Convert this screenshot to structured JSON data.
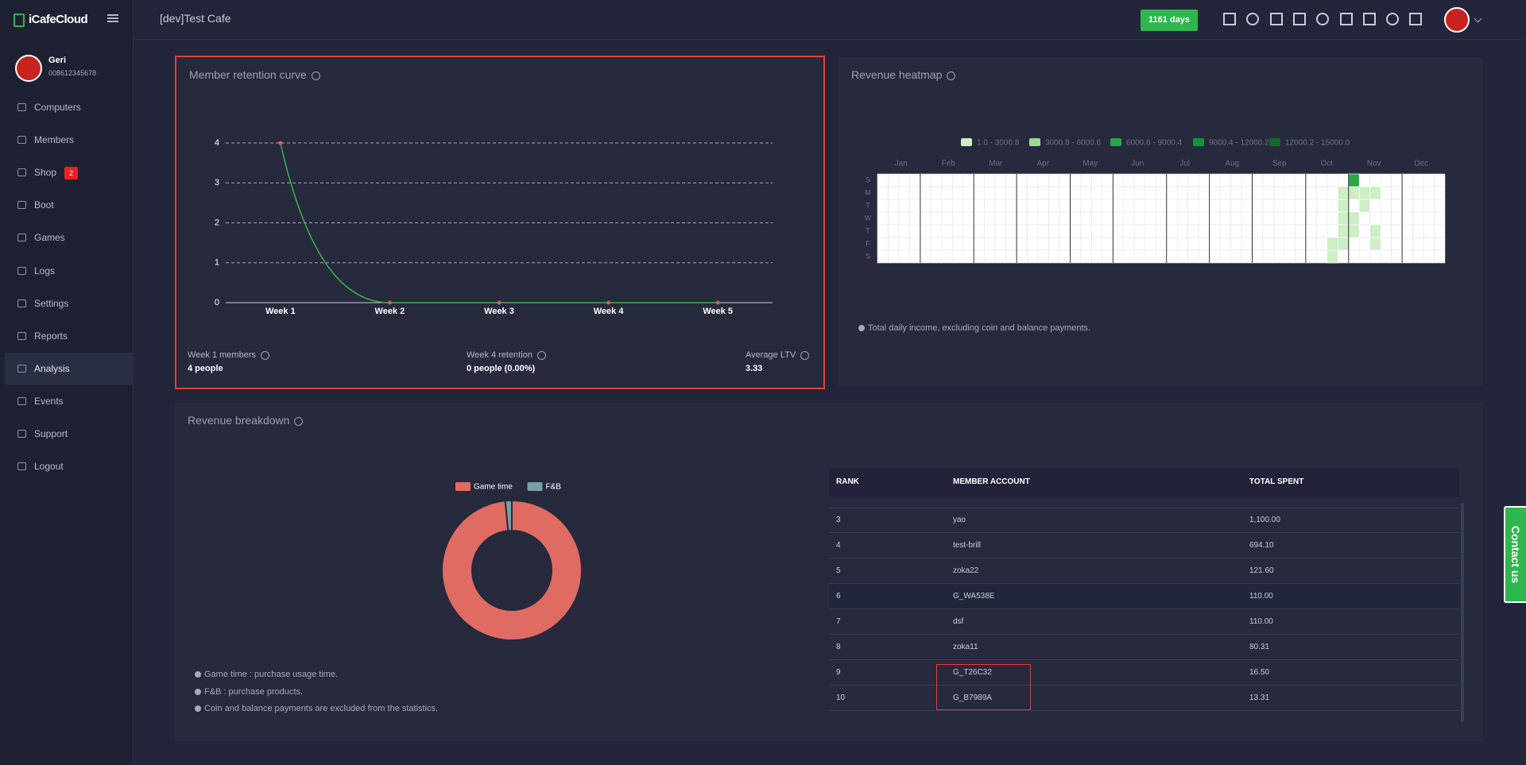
{
  "sidebar": {
    "brand": "iCafeCloud",
    "user": {
      "name": "Geri",
      "phone": "008612345678"
    },
    "menu": [
      {
        "label": "Computers"
      },
      {
        "label": "Members"
      },
      {
        "label": "Shop",
        "badge": "2"
      },
      {
        "label": "Boot"
      },
      {
        "label": "Games"
      },
      {
        "label": "Logs"
      },
      {
        "label": "Settings"
      },
      {
        "label": "Reports"
      },
      {
        "label": "Analysis",
        "active": true
      },
      {
        "label": "Events"
      },
      {
        "label": "Support"
      },
      {
        "label": "Logout"
      }
    ]
  },
  "header": {
    "cafe": "[dev]Test Cafe",
    "days": "1161 days"
  },
  "retention": {
    "title": "Member retention curve",
    "chart_data": {
      "type": "line",
      "categories": [
        "Week 1",
        "Week 2",
        "Week 3",
        "Week 4",
        "Week 5"
      ],
      "series": [
        {
          "color": "#3cb44b",
          "point_color": "#e05a55",
          "values": [
            4,
            0,
            0,
            0,
            0
          ]
        }
      ],
      "ylim": [
        0,
        4
      ],
      "yticks": [
        0,
        1,
        2,
        3,
        4
      ],
      "grid": true
    },
    "stats": [
      {
        "label": "Week 1 members",
        "value": "4 people"
      },
      {
        "label": "Week 4 retention",
        "value": "0 people (0.00%)"
      },
      {
        "label": "Average LTV",
        "value": "3.33"
      }
    ]
  },
  "heatmap": {
    "title": "Revenue heatmap",
    "chart_data": {
      "type": "heatmap",
      "legend": [
        {
          "label": "1.0 - 3000.8",
          "color": "#cdeec6",
          "min": 1.0,
          "max": 3000.8
        },
        {
          "label": "3000.8 - 6000.6",
          "color": "#9bdb92",
          "min": 3000.8,
          "max": 6000.6
        },
        {
          "label": "6000.6 - 9000.4",
          "color": "#25a845",
          "min": 6000.6,
          "max": 9000.4
        },
        {
          "label": "9000.4 - 12000.2",
          "color": "#13923a",
          "min": 9000.4,
          "max": 12000.2
        },
        {
          "label": "12000.2 - 15000.0",
          "color": "#0f6a2c",
          "min": 12000.2,
          "max": 15000.0
        }
      ],
      "months": [
        "Jan",
        "Feb",
        "Mar",
        "Apr",
        "May",
        "Jun",
        "Jul",
        "Aug",
        "Sep",
        "Oct",
        "Nov",
        "Dec"
      ],
      "days": [
        "S",
        "M",
        "T",
        "W",
        "T",
        "F",
        "S"
      ],
      "cells": [
        {
          "week": 44,
          "day": 0,
          "value": 7500
        },
        {
          "week": 43,
          "day": 1,
          "value": 1500
        },
        {
          "week": 44,
          "day": 1,
          "value": 1500
        },
        {
          "week": 45,
          "day": 1,
          "value": 1500
        },
        {
          "week": 46,
          "day": 1,
          "value": 1500
        },
        {
          "week": 43,
          "day": 2,
          "value": 1500
        },
        {
          "week": 45,
          "day": 2,
          "value": 1500
        },
        {
          "week": 43,
          "day": 3,
          "value": 1500
        },
        {
          "week": 44,
          "day": 3,
          "value": 1500
        },
        {
          "week": 43,
          "day": 4,
          "value": 1500
        },
        {
          "week": 44,
          "day": 4,
          "value": 1500
        },
        {
          "week": 46,
          "day": 4,
          "value": 1500
        },
        {
          "week": 42,
          "day": 5,
          "value": 1500
        },
        {
          "week": 43,
          "day": 5,
          "value": 1500
        },
        {
          "week": 46,
          "day": 5,
          "value": 1500
        },
        {
          "week": 42,
          "day": 6,
          "value": 1500
        }
      ]
    },
    "note": "Total daily income, excluding coin and balance payments."
  },
  "breakdown": {
    "title": "Revenue breakdown",
    "chart_data": {
      "type": "pie",
      "categories": [
        "Game time",
        "F&B"
      ],
      "values": [
        98.5,
        1.5
      ],
      "colors": [
        "#e06b63",
        "#76a0a5"
      ]
    },
    "notes": [
      "Game time : purchase usage time.",
      "F&B : purchase products.",
      "Coin and balance payments are excluded from the statistics."
    ],
    "table": {
      "headers": [
        "RANK",
        "MEMBER ACCOUNT",
        "TOTAL SPENT"
      ],
      "rows": [
        [
          "3",
          "yao",
          "1,100.00"
        ],
        [
          "4",
          "test-brill",
          "694.10"
        ],
        [
          "5",
          "zoka22",
          "121.60"
        ],
        [
          "6",
          "G_WA538E",
          "110.00"
        ],
        [
          "7",
          "dsf",
          "110.00"
        ],
        [
          "8",
          "zoka11",
          "80.31"
        ],
        [
          "9",
          "G_T26C32",
          "16.50"
        ],
        [
          "10",
          "G_B7989A",
          "13.31"
        ]
      ]
    }
  },
  "contact": "Contact us"
}
